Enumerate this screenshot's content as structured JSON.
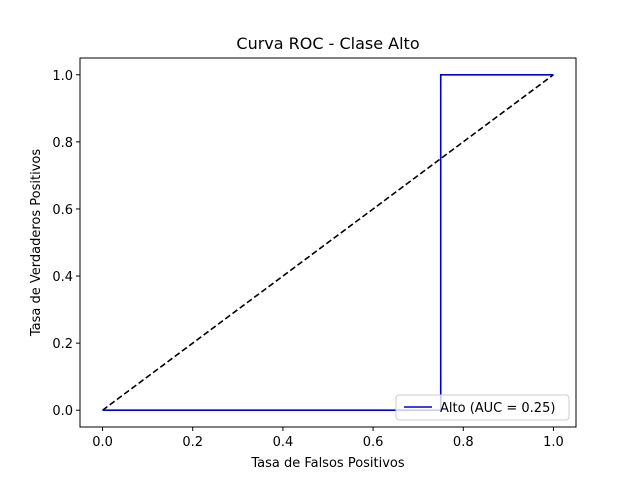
{
  "chart_data": {
    "type": "line",
    "title": "Curva ROC - Clase Alto",
    "xlabel": "Tasa de Falsos Positivos",
    "ylabel": "Tasa de Verdaderos Positivos",
    "xlim": [
      -0.05,
      1.05
    ],
    "ylim": [
      -0.05,
      1.05
    ],
    "xticks": [
      0.0,
      0.2,
      0.4,
      0.6,
      0.8,
      1.0
    ],
    "yticks": [
      0.0,
      0.2,
      0.4,
      0.6,
      0.8,
      1.0
    ],
    "xtick_labels": [
      "0.0",
      "0.2",
      "0.4",
      "0.6",
      "0.8",
      "1.0"
    ],
    "ytick_labels": [
      "0.0",
      "0.2",
      "0.4",
      "0.6",
      "0.8",
      "1.0"
    ],
    "grid": false,
    "legend_position": "lower right",
    "series": [
      {
        "name": "Alto (AUC = 0.25)",
        "color": "#0000cc",
        "style": "solid",
        "x": [
          0.0,
          0.75,
          0.75,
          1.0
        ],
        "y": [
          0.0,
          0.0,
          1.0,
          1.0
        ]
      },
      {
        "name": "",
        "color": "#000000",
        "style": "dashed",
        "x": [
          0.0,
          1.0
        ],
        "y": [
          0.0,
          1.0
        ]
      }
    ]
  }
}
